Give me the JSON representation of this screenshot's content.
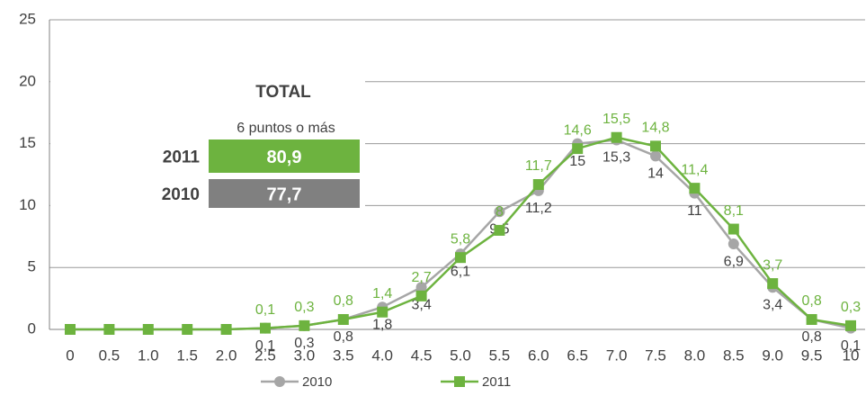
{
  "chart_data": {
    "type": "line",
    "categories": [
      "0",
      "0.5",
      "1.0",
      "1.5",
      "2.0",
      "2.5",
      "3.0",
      "3.5",
      "4.0",
      "4.5",
      "5.0",
      "5.5",
      "6.0",
      "6.5",
      "7.0",
      "7.5",
      "8.0",
      "8.5",
      "9.0",
      "9.5",
      "10"
    ],
    "series": [
      {
        "name": "2010",
        "color": "#a6a6a6",
        "marker": "circle",
        "values": [
          0,
          0,
          0,
          0,
          0,
          0.1,
          0.3,
          0.8,
          1.8,
          3.4,
          6.1,
          9.5,
          11.2,
          15,
          15.3,
          14,
          11,
          6.9,
          3.4,
          0.8,
          0.1
        ],
        "value_labels": [
          null,
          null,
          null,
          null,
          null,
          "0,1",
          "0,3",
          "0,8",
          "1,8",
          "3,4",
          "6,1",
          "9,5",
          "11,2",
          "15",
          "15,3",
          "14",
          "11",
          "6,9",
          "3,4",
          "0,8",
          "0,1"
        ]
      },
      {
        "name": "2011",
        "color": "#6db33f",
        "marker": "square",
        "values": [
          0,
          0,
          0,
          0,
          0,
          0.1,
          0.3,
          0.8,
          1.4,
          2.7,
          5.8,
          8,
          11.7,
          14.6,
          15.5,
          14.8,
          11.4,
          8.1,
          3.7,
          0.8,
          0.3
        ],
        "value_labels": [
          null,
          null,
          null,
          null,
          null,
          "0,1",
          "0,3",
          "0,8",
          "1,4",
          "2,7",
          "5,8",
          "8",
          "11,7",
          "14,6",
          "15,5",
          "14,8",
          "11,4",
          "8,1",
          "3,7",
          "0,8",
          "0,3"
        ]
      }
    ],
    "ylim": [
      0,
      25
    ],
    "yticks": [
      0,
      5,
      10,
      15,
      20,
      25
    ],
    "grid": true,
    "annotation": {
      "title": "TOTAL",
      "subtitle": "6 puntos o más",
      "rows": [
        {
          "label": "2011",
          "value": "80,9",
          "color": "#6db33f"
        },
        {
          "label": "2010",
          "value": "77,7",
          "color": "#808080"
        }
      ]
    }
  }
}
